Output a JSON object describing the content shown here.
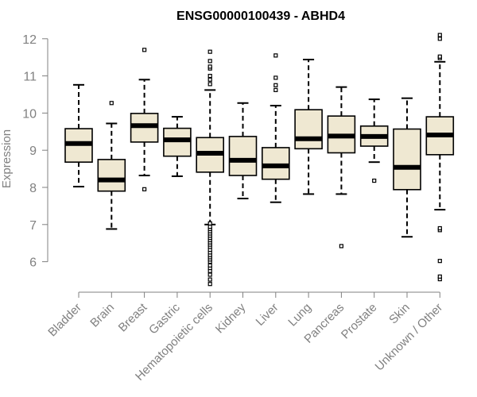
{
  "chart_data": {
    "type": "boxplot",
    "title": "ENSG00000100439 - ABHD4",
    "xlabel": "",
    "ylabel": "Expression",
    "ylim": [
      5.3,
      12.4
    ],
    "yticks": [
      6,
      7,
      8,
      9,
      10,
      11,
      12
    ],
    "grid": false,
    "colors": {
      "box_fill": "#EFE8D2",
      "stroke": "#000000",
      "axis": "#808080",
      "label": "#808080"
    },
    "categories": [
      "Bladder",
      "Brain",
      "Breast",
      "Gastric",
      "Hematopoietic cells",
      "Kidney",
      "Liver",
      "Lung",
      "Pancreas",
      "Prostate",
      "Skin",
      "Unknown / Other"
    ],
    "boxes": [
      {
        "name": "Bladder",
        "whisker_low": 8.02,
        "q1": 8.68,
        "median": 9.18,
        "q3": 9.58,
        "whisker_high": 10.76,
        "outliers": []
      },
      {
        "name": "Brain",
        "whisker_low": 6.88,
        "q1": 7.9,
        "median": 8.2,
        "q3": 8.75,
        "whisker_high": 9.72,
        "outliers": [
          10.27
        ]
      },
      {
        "name": "Breast",
        "whisker_low": 8.32,
        "q1": 9.22,
        "median": 9.66,
        "q3": 9.99,
        "whisker_high": 10.9,
        "outliers": [
          7.95,
          11.7
        ]
      },
      {
        "name": "Gastric",
        "whisker_low": 8.3,
        "q1": 8.84,
        "median": 9.28,
        "q3": 9.59,
        "whisker_high": 9.9,
        "outliers": []
      },
      {
        "name": "Hematopoietic cells",
        "whisker_low": 7.0,
        "q1": 8.41,
        "median": 8.92,
        "q3": 9.34,
        "whisker_high": 10.62,
        "outliers": [
          5.4,
          5.52,
          5.65,
          5.75,
          5.83,
          5.9,
          6.0,
          6.06,
          6.12,
          6.18,
          6.25,
          6.32,
          6.4,
          6.46,
          6.52,
          6.58,
          6.64,
          6.7,
          6.76,
          6.82,
          6.88,
          6.94,
          7.03,
          10.78,
          10.9,
          11.0,
          11.2,
          11.25,
          11.4,
          11.65
        ]
      },
      {
        "name": "Kidney",
        "whisker_low": 7.7,
        "q1": 8.32,
        "median": 8.73,
        "q3": 9.37,
        "whisker_high": 10.27,
        "outliers": []
      },
      {
        "name": "Liver",
        "whisker_low": 7.6,
        "q1": 8.22,
        "median": 8.58,
        "q3": 9.07,
        "whisker_high": 10.2,
        "outliers": [
          10.62,
          10.75,
          10.95,
          11.55
        ]
      },
      {
        "name": "Lung",
        "whisker_low": 7.82,
        "q1": 9.04,
        "median": 9.31,
        "q3": 10.09,
        "whisker_high": 11.44,
        "outliers": []
      },
      {
        "name": "Pancreas",
        "whisker_low": 7.82,
        "q1": 8.93,
        "median": 9.38,
        "q3": 9.92,
        "whisker_high": 10.7,
        "outliers": [
          6.42
        ]
      },
      {
        "name": "Prostate",
        "whisker_low": 8.68,
        "q1": 9.11,
        "median": 9.37,
        "q3": 9.65,
        "whisker_high": 10.37,
        "outliers": [
          8.18
        ]
      },
      {
        "name": "Skin",
        "whisker_low": 6.67,
        "q1": 7.94,
        "median": 8.54,
        "q3": 9.57,
        "whisker_high": 10.4,
        "outliers": []
      },
      {
        "name": "Unknown / Other",
        "whisker_low": 7.4,
        "q1": 8.88,
        "median": 9.41,
        "q3": 9.9,
        "whisker_high": 11.38,
        "outliers": [
          5.53,
          5.6,
          6.02,
          6.85,
          6.9,
          11.48,
          11.52,
          12.0,
          12.1
        ]
      }
    ]
  }
}
